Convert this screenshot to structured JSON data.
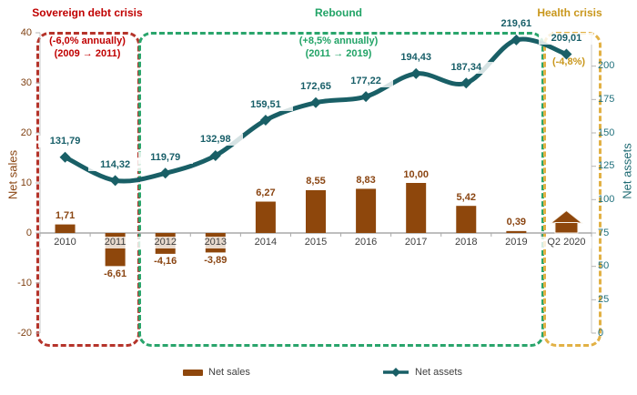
{
  "chart_data": {
    "type": "combo",
    "categories": [
      "2010",
      "2011",
      "2012",
      "2013",
      "2014",
      "2015",
      "2016",
      "2017",
      "2018",
      "2019",
      "Q2 2020"
    ],
    "series": [
      {
        "name": "Net sales",
        "type": "bar",
        "axis": "left",
        "color": "#8E470C",
        "values": [
          1.71,
          -6.61,
          -4.16,
          -3.89,
          6.27,
          8.55,
          8.83,
          10.0,
          5.42,
          0.39,
          null
        ],
        "labels": [
          "1,71",
          "-6,61",
          "-4,16",
          "-3,89",
          "6,27",
          "8,55",
          "8,83",
          "10,00",
          "5,42",
          "0,39",
          ""
        ],
        "last_point_marker": "house-icon"
      },
      {
        "name": "Net assets",
        "type": "line",
        "axis": "right",
        "color": "#195F66",
        "values": [
          131.79,
          114.32,
          119.79,
          132.98,
          159.51,
          172.65,
          177.22,
          194.43,
          187.34,
          219.61,
          209.01
        ],
        "labels": [
          "131,79",
          "114,32",
          "119,79",
          "132,98",
          "159,51",
          "172,65",
          "177,22",
          "194,43",
          "187,34",
          "219,61",
          "209,01"
        ]
      }
    ],
    "left_axis": {
      "title": "Net sales",
      "ticks": [
        40,
        30,
        20,
        10,
        0,
        -10,
        -20
      ],
      "range": [
        -20,
        40
      ]
    },
    "right_axis": {
      "title": "Net assets",
      "ticks": [
        200,
        175,
        150,
        125,
        100,
        75,
        50,
        25,
        0
      ],
      "range": [
        0,
        225
      ]
    },
    "legend": {
      "position": "bottom",
      "items": [
        "Net sales",
        "Net assets"
      ]
    },
    "grid": "off",
    "regions": [
      {
        "title": "Sovereign debt crisis",
        "annotation_lines": [
          "(-6,0% annually)",
          "(2009 → 2011)"
        ],
        "text_color": "#C00000",
        "box_color": "#B5342B",
        "span": [
          "2010",
          "2011"
        ]
      },
      {
        "title": "Rebound",
        "annotation_lines": [
          "(+8,5% annually)",
          "(2011 → 2019)"
        ],
        "text_color": "#21A366",
        "box_color": "#2AA56C",
        "span": [
          "2012",
          "2019"
        ]
      },
      {
        "title": "Health crisis",
        "annotation_lines": [
          "(-4,8%)"
        ],
        "text_color": "#C9971C",
        "box_color": "#E2B145",
        "span": [
          "Q2 2020"
        ]
      }
    ]
  }
}
